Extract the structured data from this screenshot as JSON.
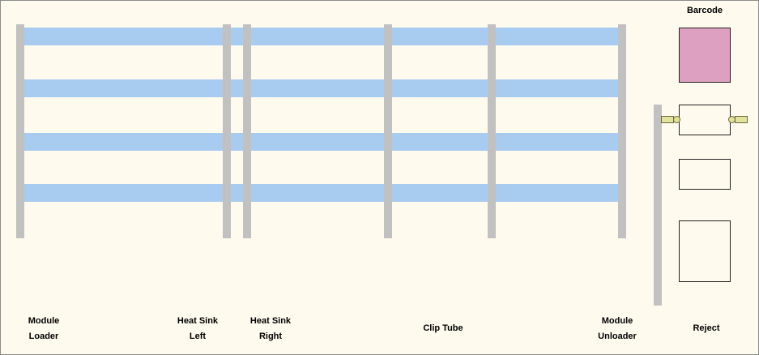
{
  "labels": {
    "module_loader": [
      "Module",
      "Loader"
    ],
    "heat_sink_left": [
      "Heat Sink",
      "Left"
    ],
    "heat_sink_right": [
      "Heat Sink",
      "Right"
    ],
    "clip_tube": "Clip Tube",
    "module_unloader": [
      "Module",
      "Unloader"
    ],
    "reject": "Reject",
    "barcode": "Barcode"
  },
  "colors": {
    "background": "#fffaee",
    "rail": "#a8cbf0",
    "post": "#c1c1c1",
    "barcode_box": "#dea0c0",
    "clamp": "#e2e29a"
  },
  "conveyor": {
    "lane_count": 4,
    "post_count": 7
  },
  "reject_bins": {
    "count": 3
  }
}
